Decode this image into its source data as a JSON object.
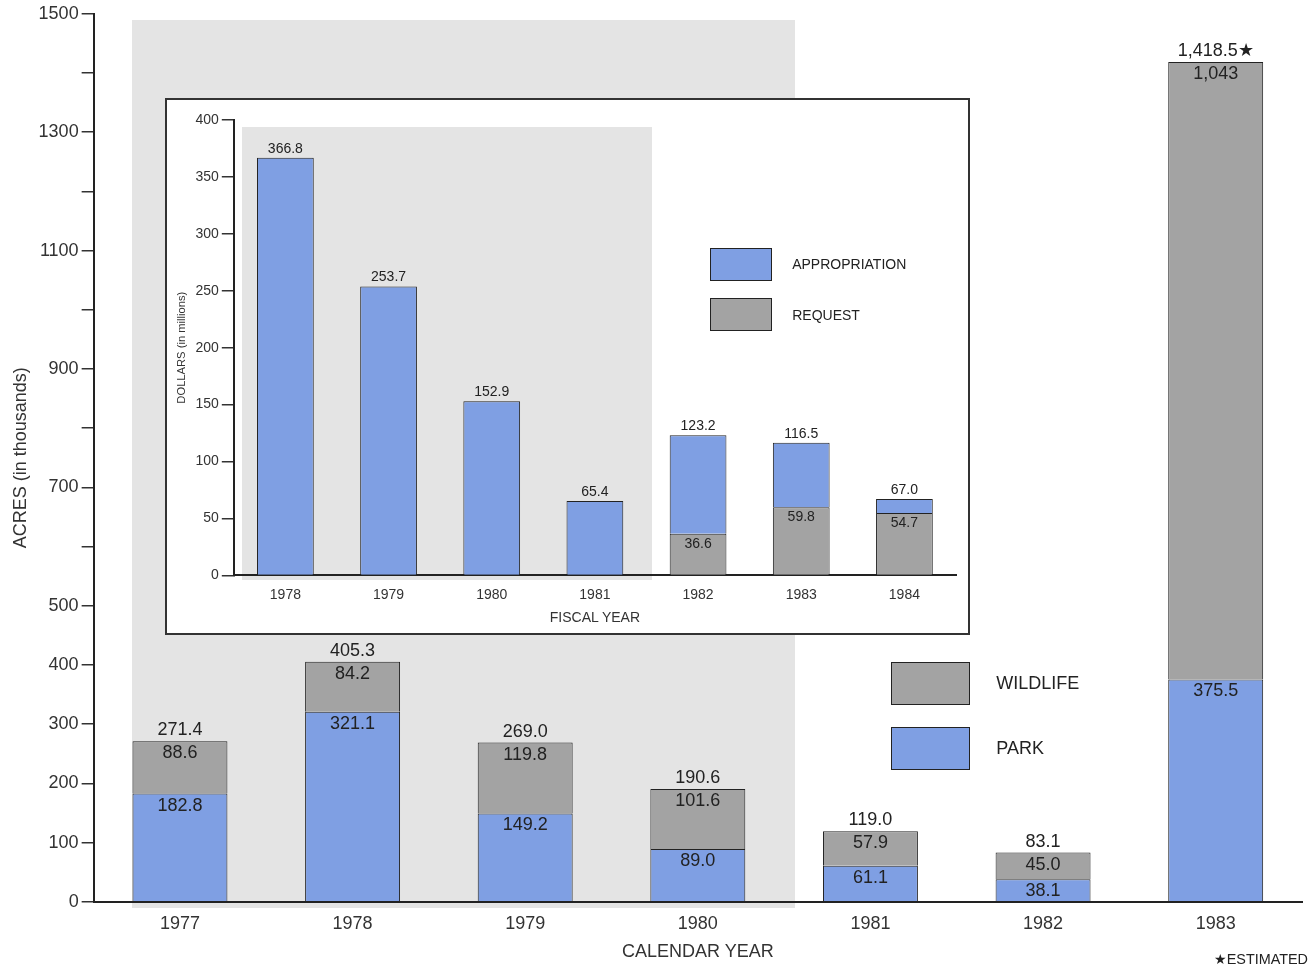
{
  "chart_data": [
    {
      "type": "bar",
      "xlabel": "CALENDAR YEAR",
      "ylabel": "ACRES (in thousands)",
      "categories": [
        "1977",
        "1978",
        "1979",
        "1980",
        "1981",
        "1982",
        "1983"
      ],
      "stacked": true,
      "legend": "right",
      "series": [
        {
          "name": "PARK",
          "color": "#7f9fe3",
          "values": [
            182.8,
            321.1,
            149.2,
            89.0,
            61.1,
            38.1,
            375.5
          ],
          "value_labels": [
            "182.8",
            "321.1",
            "149.2",
            "89.0",
            "61.1",
            "38.1",
            "375.5"
          ]
        },
        {
          "name": "WILDLIFE",
          "color": "#a3a3a3",
          "values": [
            88.6,
            84.2,
            119.8,
            101.6,
            57.9,
            45.0,
            1043
          ],
          "value_labels": [
            "88.6",
            "84.2",
            "119.8",
            "101.6",
            "57.9",
            "45.0",
            "1,043"
          ]
        }
      ],
      "totals": [
        "271.4",
        "405.3",
        "269.0",
        "190.6",
        "119.0",
        "83.1",
        "1,418.5★"
      ],
      "ylim": [
        0,
        1500
      ],
      "yticks": [
        0,
        100,
        200,
        300,
        400,
        500,
        {
          "value": 600,
          "label": null
        },
        700,
        {
          "value": 800,
          "label": null
        },
        900,
        {
          "value": 1000,
          "label": null
        },
        1100,
        {
          "value": 1200,
          "label": null
        },
        1300,
        {
          "value": 1400,
          "label": null
        },
        1500
      ],
      "annotations": [
        "★ESTIMATED"
      ]
    },
    {
      "type": "bar",
      "xlabel": "FISCAL YEAR",
      "ylabel": "DOLLARS (in millions)",
      "categories": [
        "1978",
        "1979",
        "1980",
        "1981",
        "1982",
        "1983",
        "1984"
      ],
      "stacked": true,
      "legend": "top right",
      "series": [
        {
          "name": "REQUEST",
          "color": "#a3a3a3",
          "values": [
            null,
            null,
            null,
            null,
            36.6,
            59.8,
            54.7
          ],
          "value_labels": [
            null,
            null,
            null,
            null,
            "36.6",
            "59.8",
            "54.7"
          ]
        },
        {
          "name": "APPROPRIATION",
          "color": "#7f9fe3",
          "values": [
            366.8,
            253.7,
            152.9,
            65.4,
            86.6,
            56.7,
            12.3
          ]
        }
      ],
      "totals": [
        "366.8",
        "253.7",
        "152.9",
        "65.4",
        "123.2",
        "116.5",
        "67.0"
      ],
      "ylim": [
        0,
        400
      ],
      "yticks": [
        0,
        50,
        100,
        150,
        200,
        250,
        300,
        350,
        400
      ]
    }
  ]
}
